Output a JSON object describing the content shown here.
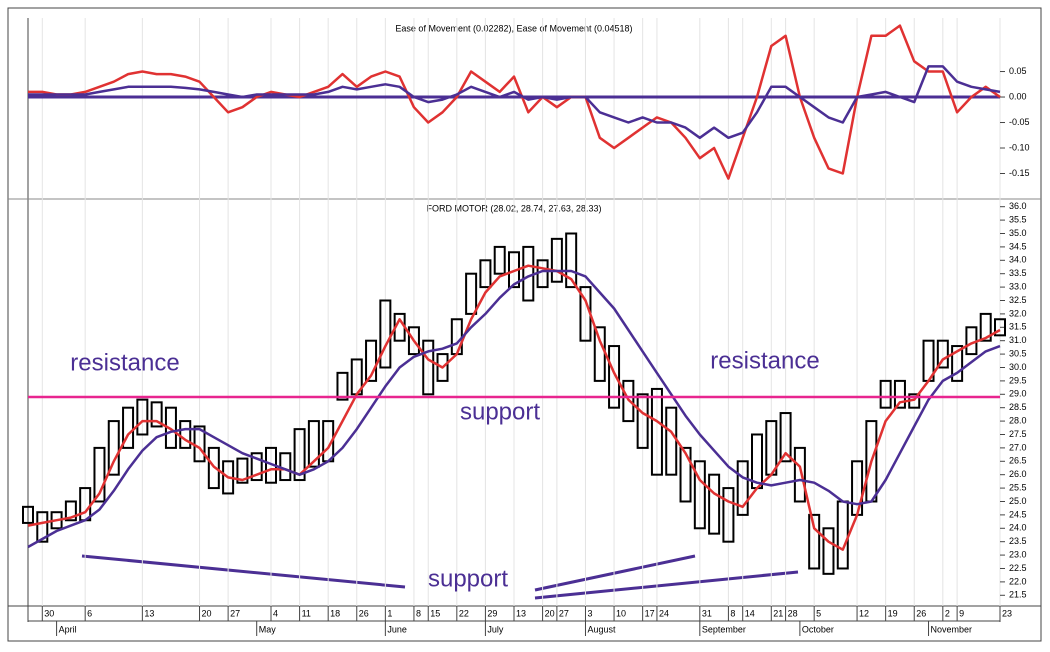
{
  "chart_data": [
    {
      "type": "line",
      "title": "Ease of Movement (0.02282), Ease of Movement (0.04518)",
      "ylim": [
        -0.2,
        0.155
      ],
      "yticks": [
        0.05,
        {
          "value": 0,
          "label": "0.00"
        },
        -0.05,
        {
          "value": -0.1,
          "label": "-0.10"
        },
        -0.15
      ],
      "series": [
        {
          "color": "#e03232",
          "values": [
            0.01,
            0.01,
            0.005,
            0.005,
            0.01,
            0.02,
            0.03,
            0.045,
            0.05,
            0.045,
            0.045,
            0.04,
            0.03,
            0,
            -0.03,
            -0.02,
            0,
            0.01,
            0.005,
            0,
            0.01,
            0.02,
            0.045,
            0.02,
            0.04,
            0.05,
            0.04,
            -0.02,
            -0.05,
            -0.03,
            0,
            0.05,
            0.03,
            0.01,
            0.04,
            -0.03,
            0,
            -0.02,
            0,
            0,
            -0.08,
            -0.1,
            -0.08,
            -0.06,
            -0.04,
            -0.05,
            -0.08,
            -0.12,
            -0.1,
            -0.16,
            -0.08,
            0,
            0.1,
            0.12,
            0,
            -0.08,
            -0.14,
            -0.15,
            0,
            0.12,
            0.12,
            0.14,
            0.07,
            0.05,
            0.05,
            -0.03,
            0,
            0.02,
            0
          ]
        },
        {
          "color": "#4b2f94",
          "values": [
            0.005,
            0.005,
            0.005,
            0.005,
            0.005,
            0.01,
            0.015,
            0.02,
            0.02,
            0.02,
            0.02,
            0.018,
            0.015,
            0.01,
            0.005,
            0,
            0.005,
            0.005,
            0.005,
            0.005,
            0.005,
            0.01,
            0.02,
            0.015,
            0.02,
            0.025,
            0.02,
            0,
            -0.01,
            -0.005,
            0.005,
            0.02,
            0.01,
            0,
            0.01,
            -0.005,
            0,
            -0.005,
            0,
            0,
            -0.03,
            -0.04,
            -0.05,
            -0.04,
            -0.05,
            -0.05,
            -0.06,
            -0.08,
            -0.06,
            -0.08,
            -0.07,
            -0.03,
            0.02,
            0.02,
            0,
            -0.02,
            -0.04,
            -0.05,
            0,
            0.005,
            0.01,
            0,
            -0.01,
            0.06,
            0.06,
            0.03,
            0.02,
            0.015,
            0.01
          ]
        }
      ]
    },
    {
      "type": "box",
      "title": "FORD MOTOR (28.02, 28.74, 27.63, 28.33)",
      "categories": [
        null,
        "30",
        null,
        null,
        "6",
        null,
        null,
        null,
        "13",
        null,
        null,
        null,
        "20",
        null,
        "27",
        null,
        null,
        "4",
        null,
        "11",
        null,
        "18",
        null,
        "26",
        null,
        "1",
        null,
        "8",
        "15",
        null,
        "22",
        null,
        "29",
        null,
        "13",
        null,
        "20",
        "27",
        null,
        "3",
        null,
        "10",
        null,
        "17",
        "24",
        null,
        null,
        "31",
        null,
        "8",
        "14",
        null,
        "21",
        "28",
        null,
        "5",
        null,
        null,
        "12",
        null,
        "19",
        null,
        "26",
        null,
        "2",
        "9",
        null,
        null,
        "23"
      ],
      "months": [
        null,
        null,
        "April",
        null,
        null,
        null,
        null,
        null,
        null,
        null,
        null,
        null,
        null,
        null,
        null,
        null,
        "May",
        null,
        null,
        null,
        null,
        null,
        null,
        null,
        null,
        "June",
        null,
        null,
        null,
        null,
        null,
        null,
        "July",
        null,
        null,
        null,
        null,
        null,
        null,
        "August",
        null,
        null,
        null,
        null,
        null,
        null,
        null,
        "September",
        null,
        null,
        null,
        null,
        null,
        null,
        "October",
        null,
        null,
        null,
        null,
        null,
        null,
        null,
        null,
        "November",
        null,
        null,
        null,
        null,
        null
      ],
      "low": [
        24.2,
        23.5,
        24.0,
        24.3,
        24.3,
        25.0,
        26.0,
        27.0,
        27.5,
        27.8,
        27.0,
        27.0,
        26.5,
        25.5,
        25.3,
        25.7,
        25.8,
        25.7,
        25.8,
        25.8,
        26.3,
        26.5,
        28.8,
        29.0,
        29.5,
        30.0,
        31.0,
        30.5,
        29.0,
        29.5,
        30.5,
        32.0,
        33.0,
        33.5,
        33.0,
        32.5,
        33.0,
        33.2,
        33.0,
        31.0,
        29.5,
        28.5,
        28.0,
        27.0,
        26.0,
        26.0,
        25.0,
        24.0,
        23.8,
        23.5,
        24.5,
        25.5,
        26.0,
        26.5,
        25.0,
        22.5,
        22.3,
        22.5,
        24.5,
        25.0,
        28.5,
        28.5,
        28.5,
        29.5,
        30.0,
        29.5,
        30.5,
        31.0,
        31.2
      ],
      "high": [
        24.8,
        24.6,
        24.6,
        25.0,
        25.5,
        27.0,
        28.0,
        28.5,
        28.8,
        28.7,
        28.5,
        28.0,
        27.8,
        27.0,
        26.5,
        26.6,
        26.8,
        27.0,
        26.8,
        27.7,
        28.0,
        28.0,
        29.8,
        30.3,
        31.0,
        32.5,
        32.0,
        31.5,
        31.0,
        30.5,
        31.8,
        33.5,
        34.0,
        34.5,
        34.3,
        34.5,
        34.0,
        34.8,
        35.0,
        33.0,
        31.5,
        30.8,
        29.5,
        29.0,
        29.2,
        28.5,
        27.0,
        26.5,
        26.0,
        25.5,
        26.5,
        27.5,
        28.0,
        28.3,
        27.0,
        24.5,
        24.0,
        25.0,
        26.5,
        28.0,
        29.5,
        29.5,
        29.0,
        31.0,
        31.0,
        30.8,
        31.5,
        32.0,
        31.8
      ],
      "series": [
        {
          "color": "#e03232",
          "values": [
            24.1,
            24.2,
            24.3,
            24.4,
            24.6,
            25.3,
            26.5,
            27.5,
            28.0,
            28.0,
            27.7,
            27.3,
            27.0,
            26.3,
            25.9,
            25.8,
            26.0,
            26.2,
            26.2,
            26.0,
            26.5,
            27.0,
            28.0,
            29.0,
            29.7,
            30.8,
            31.8,
            31.0,
            30.3,
            30.0,
            30.5,
            31.8,
            32.8,
            33.4,
            33.6,
            33.8,
            33.7,
            33.6,
            33.3,
            32.5,
            31.0,
            29.8,
            28.8,
            28.3,
            28.0,
            27.6,
            26.8,
            25.8,
            25.3,
            25.0,
            24.8,
            25.5,
            26.0,
            26.8,
            26.3,
            24.0,
            23.5,
            23.2,
            24.5,
            26.5,
            28.0,
            28.7,
            28.8,
            29.5,
            30.3,
            30.6,
            30.9,
            31.1,
            31.4
          ]
        },
        {
          "color": "#4b2f94",
          "values": [
            23.3,
            23.6,
            23.9,
            24.1,
            24.3,
            24.7,
            25.4,
            26.2,
            26.9,
            27.4,
            27.6,
            27.7,
            27.7,
            27.4,
            27.1,
            26.8,
            26.6,
            26.4,
            26.2,
            26.0,
            26.2,
            26.5,
            27.0,
            27.7,
            28.5,
            29.3,
            30.0,
            30.4,
            30.6,
            30.7,
            30.9,
            31.5,
            32.0,
            32.6,
            33.1,
            33.4,
            33.6,
            33.6,
            33.6,
            33.4,
            32.8,
            32.2,
            31.4,
            30.6,
            29.8,
            29.0,
            28.2,
            27.5,
            26.9,
            26.3,
            25.9,
            25.7,
            25.6,
            25.7,
            25.8,
            25.7,
            25.4,
            25.0,
            24.9,
            25.0,
            25.8,
            26.8,
            27.8,
            28.8,
            29.5,
            29.8,
            30.2,
            30.6,
            30.8
          ]
        }
      ],
      "hline": {
        "value": 28.9,
        "color": "#e8258f"
      },
      "annotations": [
        "resistance",
        "support",
        "resistance",
        "support"
      ],
      "ylim": [
        21.1,
        36.25
      ],
      "yticks": [
        21.5,
        {
          "value": 22,
          "label": "22.0"
        },
        22.5,
        {
          "value": 23,
          "label": "23.0"
        },
        23.5,
        {
          "value": 24,
          "label": "24.0"
        },
        24.5,
        {
          "value": 25,
          "label": "25.0"
        },
        25.5,
        {
          "value": 26,
          "label": "26.0"
        },
        26.5,
        {
          "value": 27,
          "label": "27.0"
        },
        27.5,
        {
          "value": 28,
          "label": "28.0"
        },
        28.5,
        {
          "value": 29,
          "label": "29.0"
        },
        29.5,
        {
          "value": 30,
          "label": "30.0"
        },
        30.5,
        {
          "value": 31,
          "label": "31.0"
        },
        31.5,
        {
          "value": 32,
          "label": "32.0"
        },
        32.5,
        {
          "value": 33,
          "label": "33.0"
        },
        33.5,
        {
          "value": 34,
          "label": "34.0"
        },
        34.5,
        {
          "value": 35,
          "label": "35.0"
        },
        35.5,
        {
          "value": 36,
          "label": "36.0"
        }
      ]
    }
  ]
}
